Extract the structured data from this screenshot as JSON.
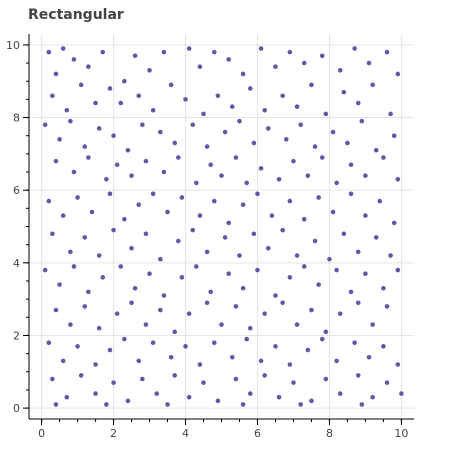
{
  "chart_data": {
    "type": "scatter",
    "title": "Rectangular",
    "xlabel": "",
    "ylabel": "",
    "xlim": [
      -0.35,
      10.35
    ],
    "ylim": [
      -0.3,
      10.3
    ],
    "x_ticks": [
      0,
      2,
      4,
      6,
      8,
      10
    ],
    "y_ticks": [
      0,
      2,
      4,
      6,
      8,
      10
    ],
    "grid": true,
    "legend": "none",
    "marker_color": "#5a4fa0",
    "points": [
      [
        0.2,
        9.8
      ],
      [
        0.4,
        9.2
      ],
      [
        0.6,
        9.9
      ],
      [
        0.9,
        9.6
      ],
      [
        1.3,
        9.4
      ],
      [
        1.7,
        9.8
      ],
      [
        2.3,
        9.0
      ],
      [
        2.6,
        9.7
      ],
      [
        3.0,
        9.3
      ],
      [
        3.4,
        9.8
      ],
      [
        4.1,
        9.9
      ],
      [
        4.4,
        9.4
      ],
      [
        4.8,
        9.8
      ],
      [
        5.2,
        9.6
      ],
      [
        5.6,
        9.2
      ],
      [
        6.1,
        9.9
      ],
      [
        6.5,
        9.4
      ],
      [
        6.9,
        9.8
      ],
      [
        7.3,
        9.5
      ],
      [
        7.8,
        9.7
      ],
      [
        8.3,
        9.3
      ],
      [
        8.7,
        9.9
      ],
      [
        9.1,
        9.5
      ],
      [
        9.6,
        9.8
      ],
      [
        9.9,
        9.2
      ],
      [
        0.3,
        8.6
      ],
      [
        0.7,
        8.2
      ],
      [
        1.1,
        8.9
      ],
      [
        1.5,
        8.4
      ],
      [
        1.9,
        8.8
      ],
      [
        2.2,
        8.4
      ],
      [
        2.7,
        8.6
      ],
      [
        3.1,
        8.2
      ],
      [
        3.6,
        8.9
      ],
      [
        4.0,
        8.5
      ],
      [
        4.5,
        8.1
      ],
      [
        4.9,
        8.6
      ],
      [
        5.3,
        8.3
      ],
      [
        5.8,
        8.8
      ],
      [
        6.2,
        8.2
      ],
      [
        6.7,
        8.6
      ],
      [
        7.1,
        8.3
      ],
      [
        7.5,
        8.9
      ],
      [
        7.9,
        8.1
      ],
      [
        8.4,
        8.7
      ],
      [
        8.8,
        8.4
      ],
      [
        9.2,
        8.9
      ],
      [
        9.7,
        8.1
      ],
      [
        0.1,
        7.8
      ],
      [
        0.5,
        7.4
      ],
      [
        0.8,
        7.9
      ],
      [
        1.2,
        7.2
      ],
      [
        1.6,
        7.7
      ],
      [
        2.0,
        7.5
      ],
      [
        2.4,
        7.1
      ],
      [
        2.8,
        7.8
      ],
      [
        3.3,
        7.6
      ],
      [
        3.7,
        7.3
      ],
      [
        4.2,
        7.8
      ],
      [
        4.6,
        7.2
      ],
      [
        5.1,
        7.6
      ],
      [
        5.5,
        7.9
      ],
      [
        5.9,
        7.3
      ],
      [
        6.3,
        7.7
      ],
      [
        6.8,
        7.4
      ],
      [
        7.2,
        7.8
      ],
      [
        7.6,
        7.2
      ],
      [
        8.1,
        7.6
      ],
      [
        8.5,
        7.3
      ],
      [
        8.9,
        7.9
      ],
      [
        9.3,
        7.1
      ],
      [
        9.8,
        7.5
      ],
      [
        0.4,
        6.8
      ],
      [
        0.9,
        6.5
      ],
      [
        1.3,
        6.9
      ],
      [
        1.8,
        6.3
      ],
      [
        2.1,
        6.7
      ],
      [
        2.5,
        6.4
      ],
      [
        2.9,
        6.8
      ],
      [
        3.4,
        6.5
      ],
      [
        3.8,
        6.9
      ],
      [
        4.3,
        6.2
      ],
      [
        4.7,
        6.7
      ],
      [
        5.0,
        6.4
      ],
      [
        5.4,
        6.9
      ],
      [
        5.7,
        6.2
      ],
      [
        6.1,
        6.6
      ],
      [
        6.6,
        6.3
      ],
      [
        7.0,
        6.8
      ],
      [
        7.4,
        6.4
      ],
      [
        7.8,
        6.9
      ],
      [
        8.2,
        6.2
      ],
      [
        8.6,
        6.7
      ],
      [
        9.0,
        6.4
      ],
      [
        9.5,
        6.9
      ],
      [
        9.9,
        6.3
      ],
      [
        0.2,
        5.7
      ],
      [
        0.6,
        5.3
      ],
      [
        1.0,
        5.8
      ],
      [
        1.4,
        5.4
      ],
      [
        1.9,
        5.9
      ],
      [
        2.3,
        5.2
      ],
      [
        2.7,
        5.6
      ],
      [
        3.1,
        5.9
      ],
      [
        3.5,
        5.4
      ],
      [
        3.9,
        5.8
      ],
      [
        4.4,
        5.3
      ],
      [
        4.8,
        5.7
      ],
      [
        5.2,
        5.1
      ],
      [
        5.6,
        5.6
      ],
      [
        6.0,
        5.9
      ],
      [
        6.4,
        5.3
      ],
      [
        6.9,
        5.7
      ],
      [
        7.3,
        5.2
      ],
      [
        7.7,
        5.8
      ],
      [
        8.1,
        5.4
      ],
      [
        8.6,
        5.9
      ],
      [
        9.0,
        5.3
      ],
      [
        9.4,
        5.7
      ],
      [
        9.8,
        5.1
      ],
      [
        0.3,
        4.8
      ],
      [
        0.8,
        4.3
      ],
      [
        1.2,
        4.7
      ],
      [
        1.6,
        4.2
      ],
      [
        2.0,
        4.9
      ],
      [
        2.5,
        4.4
      ],
      [
        2.9,
        4.8
      ],
      [
        3.3,
        4.1
      ],
      [
        3.8,
        4.6
      ],
      [
        4.2,
        4.9
      ],
      [
        4.6,
        4.3
      ],
      [
        5.1,
        4.7
      ],
      [
        5.5,
        4.2
      ],
      [
        5.9,
        4.8
      ],
      [
        6.3,
        4.4
      ],
      [
        6.7,
        4.9
      ],
      [
        7.1,
        4.2
      ],
      [
        7.6,
        4.6
      ],
      [
        8.0,
        4.1
      ],
      [
        8.4,
        4.8
      ],
      [
        8.8,
        4.3
      ],
      [
        9.3,
        4.7
      ],
      [
        9.7,
        4.2
      ],
      [
        0.1,
        3.8
      ],
      [
        0.5,
        3.4
      ],
      [
        0.9,
        3.9
      ],
      [
        1.3,
        3.2
      ],
      [
        1.7,
        3.6
      ],
      [
        2.2,
        3.9
      ],
      [
        2.6,
        3.3
      ],
      [
        3.0,
        3.7
      ],
      [
        3.4,
        3.1
      ],
      [
        3.9,
        3.6
      ],
      [
        4.3,
        3.9
      ],
      [
        4.7,
        3.2
      ],
      [
        5.2,
        3.7
      ],
      [
        5.6,
        3.3
      ],
      [
        6.0,
        3.8
      ],
      [
        6.5,
        3.1
      ],
      [
        6.9,
        3.6
      ],
      [
        7.3,
        3.9
      ],
      [
        7.7,
        3.4
      ],
      [
        8.2,
        3.8
      ],
      [
        8.6,
        3.2
      ],
      [
        9.0,
        3.7
      ],
      [
        9.5,
        3.3
      ],
      [
        9.9,
        3.8
      ],
      [
        0.4,
        2.7
      ],
      [
        0.8,
        2.3
      ],
      [
        1.2,
        2.8
      ],
      [
        1.6,
        2.2
      ],
      [
        2.1,
        2.6
      ],
      [
        2.5,
        2.9
      ],
      [
        2.9,
        2.3
      ],
      [
        3.3,
        2.7
      ],
      [
        3.7,
        2.1
      ],
      [
        4.1,
        2.6
      ],
      [
        4.6,
        2.9
      ],
      [
        5.0,
        2.3
      ],
      [
        5.4,
        2.8
      ],
      [
        5.8,
        2.2
      ],
      [
        6.2,
        2.6
      ],
      [
        6.7,
        2.9
      ],
      [
        7.1,
        2.3
      ],
      [
        7.5,
        2.7
      ],
      [
        7.9,
        2.1
      ],
      [
        8.3,
        2.6
      ],
      [
        8.8,
        2.9
      ],
      [
        9.2,
        2.3
      ],
      [
        9.6,
        2.8
      ],
      [
        0.2,
        1.8
      ],
      [
        0.6,
        1.3
      ],
      [
        1.0,
        1.7
      ],
      [
        1.5,
        1.2
      ],
      [
        1.9,
        1.6
      ],
      [
        2.3,
        1.9
      ],
      [
        2.7,
        1.3
      ],
      [
        3.1,
        1.8
      ],
      [
        3.6,
        1.4
      ],
      [
        4.0,
        1.7
      ],
      [
        4.4,
        1.2
      ],
      [
        4.8,
        1.8
      ],
      [
        5.3,
        1.4
      ],
      [
        5.7,
        1.9
      ],
      [
        6.1,
        1.3
      ],
      [
        6.5,
        1.7
      ],
      [
        6.9,
        1.2
      ],
      [
        7.4,
        1.6
      ],
      [
        7.8,
        1.9
      ],
      [
        8.2,
        1.3
      ],
      [
        8.7,
        1.8
      ],
      [
        9.1,
        1.4
      ],
      [
        9.5,
        1.7
      ],
      [
        9.9,
        1.2
      ],
      [
        0.3,
        0.8
      ],
      [
        0.7,
        0.3
      ],
      [
        1.1,
        0.9
      ],
      [
        1.5,
        0.4
      ],
      [
        2.0,
        0.7
      ],
      [
        2.4,
        0.2
      ],
      [
        2.8,
        0.8
      ],
      [
        3.2,
        0.4
      ],
      [
        3.7,
        0.9
      ],
      [
        4.1,
        0.3
      ],
      [
        4.5,
        0.7
      ],
      [
        4.9,
        0.2
      ],
      [
        5.4,
        0.8
      ],
      [
        5.8,
        0.4
      ],
      [
        6.2,
        0.9
      ],
      [
        6.6,
        0.3
      ],
      [
        7.0,
        0.7
      ],
      [
        7.5,
        0.2
      ],
      [
        7.9,
        0.8
      ],
      [
        8.3,
        0.4
      ],
      [
        8.8,
        0.9
      ],
      [
        9.2,
        0.3
      ],
      [
        9.6,
        0.7
      ],
      [
        10.0,
        0.4
      ],
      [
        0.4,
        0.1
      ],
      [
        1.8,
        0.1
      ],
      [
        3.5,
        0.1
      ],
      [
        5.6,
        0.1
      ],
      [
        7.2,
        0.1
      ],
      [
        8.9,
        0.1
      ]
    ]
  }
}
